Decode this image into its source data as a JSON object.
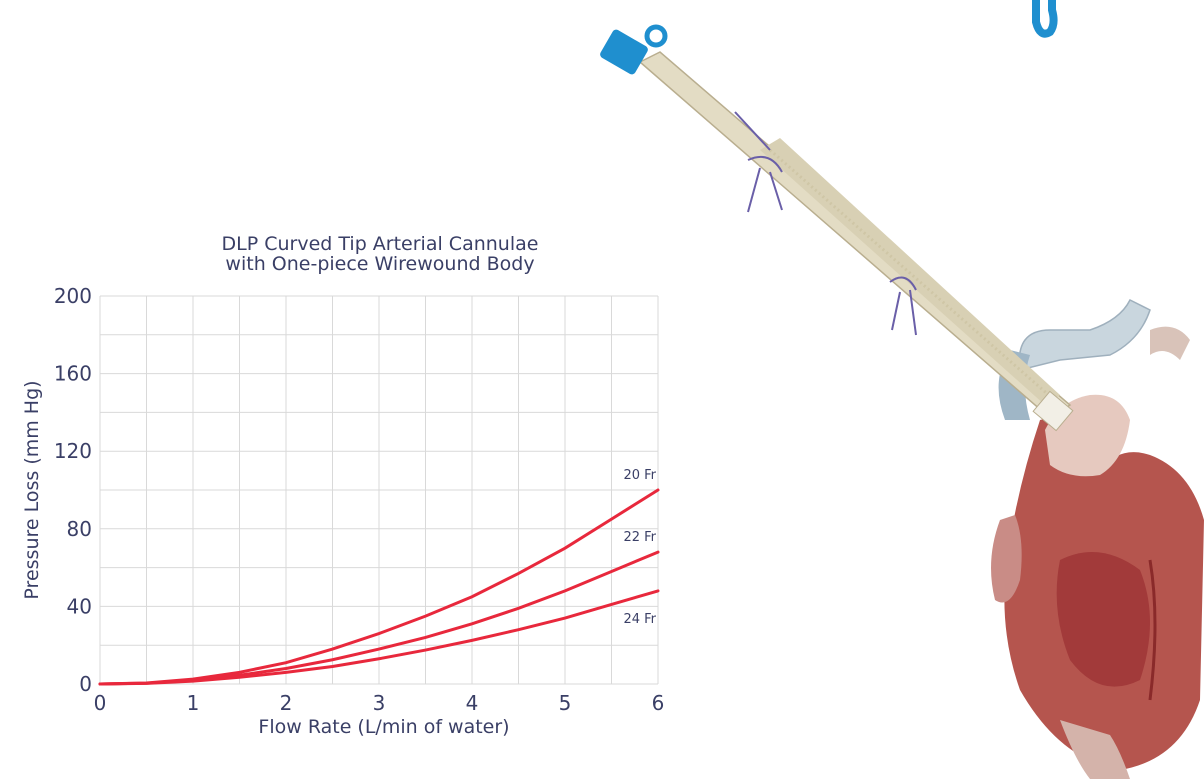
{
  "chart_data": {
    "type": "line",
    "title": [
      "DLP Curved Tip Arterial Cannulae",
      "with One-piece Wirewound Body"
    ],
    "xlabel": "Flow Rate (L/min of water)",
    "ylabel": "Pressure Loss (mm Hg)",
    "xlim": [
      0,
      6
    ],
    "ylim": [
      0,
      200
    ],
    "x_ticks": [
      0,
      1,
      2,
      3,
      4,
      5,
      6
    ],
    "y_ticks": [
      0,
      40,
      80,
      120,
      160,
      200
    ],
    "grid": true,
    "x": [
      0,
      0.5,
      1,
      1.5,
      2,
      2.5,
      3,
      3.5,
      4,
      4.5,
      5,
      5.5,
      6
    ],
    "series": [
      {
        "name": "20 Fr",
        "values": [
          0,
          0.5,
          2.5,
          6,
          11,
          18,
          26,
          35,
          45,
          57,
          70,
          85,
          100
        ]
      },
      {
        "name": "22 Fr",
        "values": [
          0,
          0.4,
          2,
          4.5,
          8,
          12.5,
          18,
          24,
          31,
          39,
          48,
          58,
          68
        ]
      },
      {
        "name": "24 Fr",
        "values": [
          0,
          0.3,
          1.5,
          3.5,
          6,
          9,
          13,
          17.5,
          22.5,
          28,
          34,
          41,
          48
        ]
      }
    ],
    "colors": {
      "series": "#e8283c",
      "text": "#3a3f66",
      "grid": "#d9d9d9"
    }
  },
  "illustration": {
    "name": "arterial-cannula-and-heart-illustration",
    "colors": {
      "cap": "#1f8fcf",
      "cannula": "#e3dcc4",
      "suture": "#6a5fa8",
      "heart": "#b5554e",
      "vessel": "#e6c9bf"
    }
  }
}
